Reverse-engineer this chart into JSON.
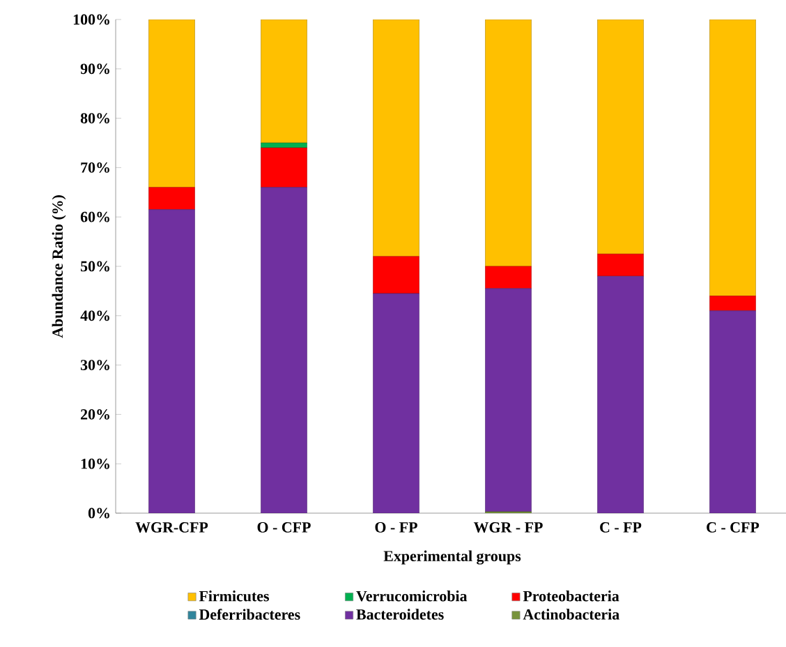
{
  "chart_data": {
    "type": "bar",
    "stacked": true,
    "categories": [
      "WGR-CFP",
      "O - CFP",
      "O - FP",
      "WGR - FP",
      "C - FP",
      "C - CFP"
    ],
    "series": [
      {
        "name": "Actinobacteria",
        "color": "#77933c",
        "values": [
          0,
          0,
          0,
          0.3,
          0,
          0
        ]
      },
      {
        "name": "Bacteroidetes",
        "color": "#7030a0",
        "values": [
          61.5,
          66,
          44.5,
          45.2,
          48,
          41
        ]
      },
      {
        "name": "Deferribacteres",
        "color": "#31859c",
        "values": [
          0,
          0,
          0,
          0,
          0,
          0
        ]
      },
      {
        "name": "Proteobacteria",
        "color": "#ff0000",
        "values": [
          4.5,
          8,
          7.5,
          4.5,
          4.5,
          3
        ]
      },
      {
        "name": "Verrucomicrobia",
        "color": "#00b050",
        "values": [
          0,
          1,
          0,
          0,
          0,
          0
        ]
      },
      {
        "name": "Firmicutes",
        "color": "#ffc000",
        "values": [
          34,
          25,
          48,
          50,
          47.5,
          56
        ]
      }
    ],
    "xlabel": "Experimental groups",
    "ylabel": "Abundance Ratio (%)",
    "ylim": [
      0,
      100
    ],
    "yticks": [
      {
        "value": 0,
        "label": "0%"
      },
      {
        "value": 10,
        "label": "10%"
      },
      {
        "value": 20,
        "label": "20%"
      },
      {
        "value": 30,
        "label": "30%"
      },
      {
        "value": 40,
        "label": "40%"
      },
      {
        "value": 50,
        "label": "50%"
      },
      {
        "value": 60,
        "label": "60%"
      },
      {
        "value": 70,
        "label": "70%"
      },
      {
        "value": 80,
        "label": "80%"
      },
      {
        "value": 90,
        "label": "90%"
      },
      {
        "value": 100,
        "label": "100%"
      }
    ],
    "legend": "bottom"
  }
}
